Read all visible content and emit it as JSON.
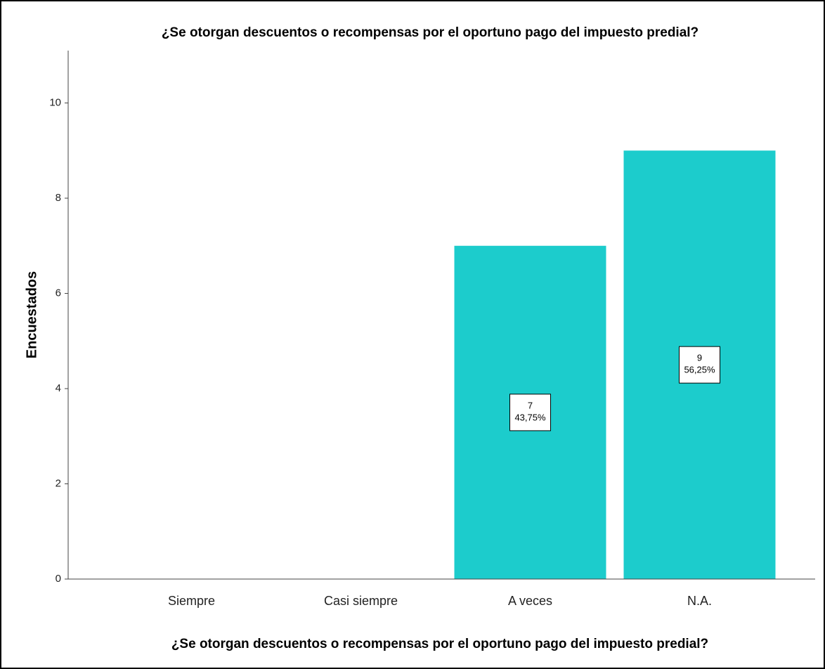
{
  "chart_data": {
    "type": "bar",
    "title": "¿Se otorgan descuentos o recompensas por el oportuno pago del impuesto predial?",
    "x_label": "¿Se otorgan descuentos o recompensas por el oportuno pago del impuesto predial?",
    "y_label": "Encuestados",
    "categories": [
      "Siempre",
      "Casi siempre",
      "A veces",
      "N.A."
    ],
    "values": [
      0,
      0,
      7,
      9
    ],
    "percent_labels": [
      null,
      null,
      "43,75%",
      "56,25%"
    ],
    "color": "#1ccccc",
    "ylim": [
      0,
      11.1
    ],
    "yticks": [
      0,
      2,
      4,
      6,
      8,
      10
    ],
    "grid": false
  }
}
